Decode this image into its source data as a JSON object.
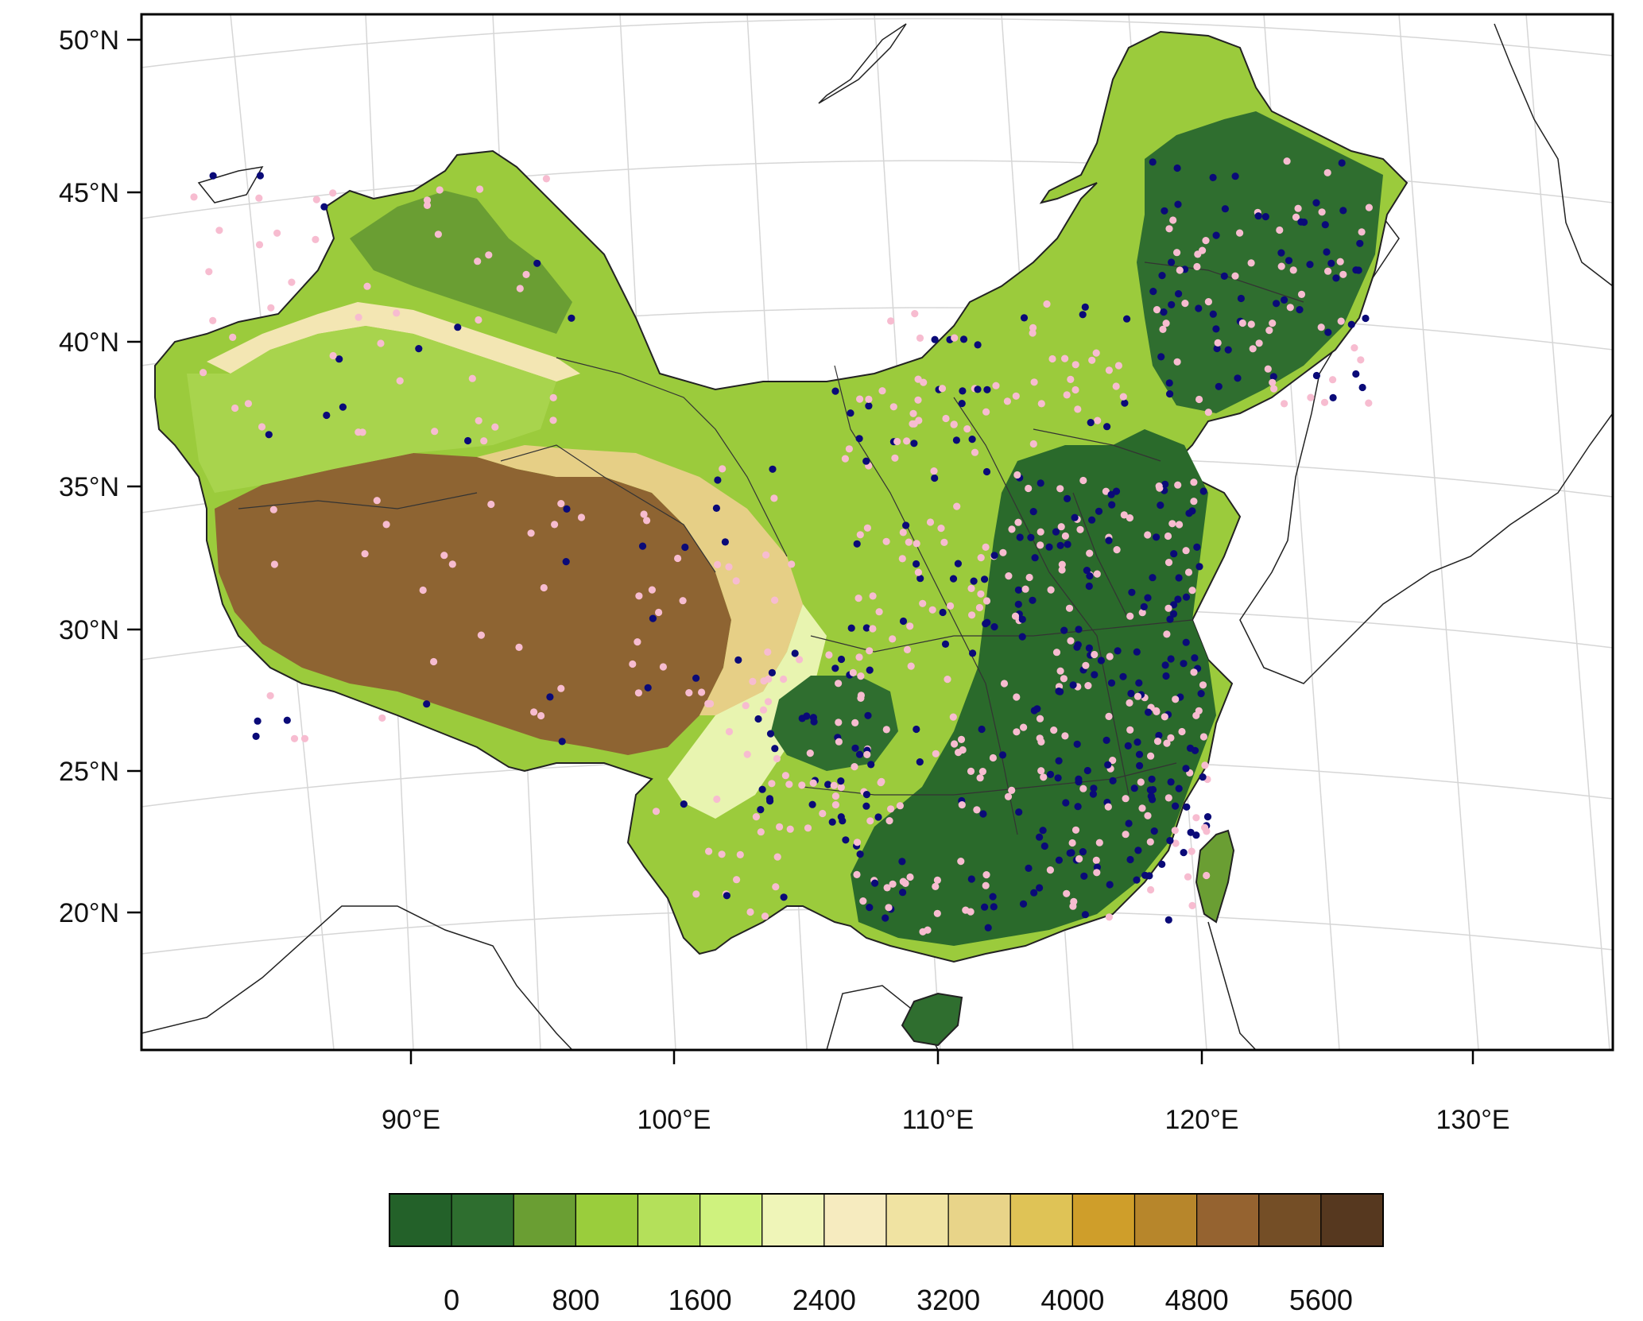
{
  "map": {
    "projection": "lambert-conformal",
    "lat_labels": [
      "50°N",
      "45°N",
      "40°N",
      "35°N",
      "30°N",
      "25°N",
      "20°N"
    ],
    "lon_labels": [
      "90°E",
      "100°E",
      "110°E",
      "120°E",
      "130°E"
    ],
    "lat_ticks_deg": [
      50,
      45,
      40,
      35,
      30,
      25,
      20
    ],
    "lon_ticks_deg": [
      90,
      100,
      110,
      120,
      130
    ],
    "grid": true,
    "coastlines": true,
    "province_borders": true
  },
  "colorbar": {
    "labels": [
      "0",
      "800",
      "1600",
      "2400",
      "3200",
      "4000",
      "4800",
      "5600"
    ],
    "colors": [
      "#236129",
      "#2e6e2f",
      "#6a9e33",
      "#9acd3c",
      "#b4e05a",
      "#cff27e",
      "#eff5b8",
      "#f6ebbf",
      "#f0e3a2",
      "#e8d489",
      "#dfc356",
      "#cf9e2a",
      "#b7862b",
      "#956330",
      "#744e26",
      "#56381f"
    ],
    "position": "bottom"
  },
  "stations": {
    "colors": {
      "dark": "#0a0a78",
      "light": "#f7bcd0"
    }
  },
  "colors": {
    "lowland": "#2f6e2f",
    "plain": "#9bcb3c",
    "highland": "#8e6432",
    "border": "#222222",
    "grid": "#d6d6d6"
  }
}
